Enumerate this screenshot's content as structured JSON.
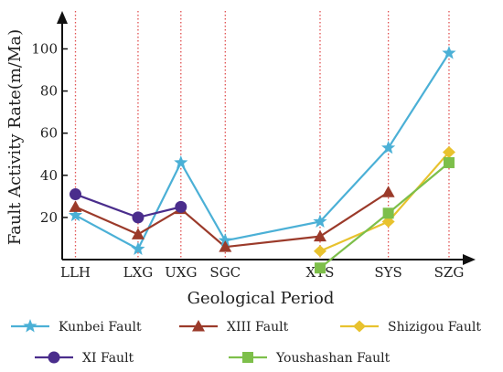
{
  "chart_data": {
    "type": "line",
    "title": "",
    "xlabel": "Geological Period",
    "ylabel": "Fault Activity Rate(m/Ma)",
    "ylim": [
      0,
      118
    ],
    "yticks": [
      20,
      40,
      60,
      80,
      100
    ],
    "categories": [
      "LLH",
      "LXG",
      "UXG",
      "SGC",
      "XYS",
      "SYS",
      "SZG"
    ],
    "x_positions": [
      0,
      1.65,
      2.78,
      3.95,
      6.45,
      8.25,
      9.85
    ],
    "x_range": [
      -0.35,
      10.55
    ],
    "legend_position": "bottom",
    "grid": false,
    "vertical_reference_lines": true,
    "colors": {
      "axis": "#111111",
      "reference_line": "#e05050"
    },
    "series": [
      {
        "name": "Kunbei Fault",
        "color": "#4bb0d6",
        "marker": "star",
        "points": [
          [
            0,
            21
          ],
          [
            1.65,
            5
          ],
          [
            2.78,
            46
          ],
          [
            3.95,
            9
          ],
          [
            6.45,
            18
          ],
          [
            8.25,
            53
          ],
          [
            9.85,
            98
          ]
        ]
      },
      {
        "name": "XIII Fault",
        "color": "#9b3a2a",
        "marker": "triangle",
        "points": [
          [
            0,
            25
          ],
          [
            1.65,
            12
          ],
          [
            2.78,
            24
          ],
          [
            3.95,
            6
          ],
          [
            6.45,
            11
          ],
          [
            8.25,
            32
          ]
        ]
      },
      {
        "name": "Shizigou Fault",
        "color": "#e8c22e",
        "marker": "diamond",
        "points": [
          [
            6.45,
            4
          ],
          [
            8.25,
            18
          ],
          [
            9.85,
            51
          ]
        ]
      },
      {
        "name": "XI Fault",
        "color": "#4a2d8c",
        "marker": "circle",
        "points": [
          [
            0,
            31
          ],
          [
            1.65,
            20
          ],
          [
            2.78,
            25
          ]
        ]
      },
      {
        "name": "Youshashan Fault",
        "color": "#7dbf4a",
        "marker": "square",
        "points": [
          [
            6.45,
            -4
          ],
          [
            8.25,
            22
          ],
          [
            9.85,
            46
          ]
        ]
      }
    ]
  }
}
